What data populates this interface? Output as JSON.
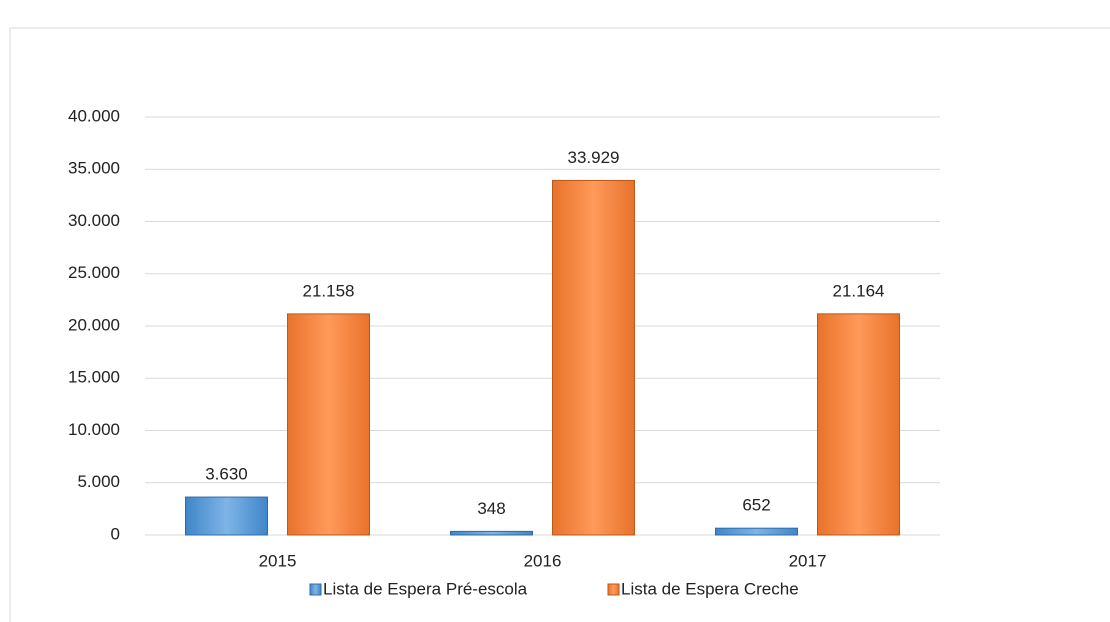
{
  "chart_data": {
    "type": "bar",
    "categories": [
      "2015",
      "2016",
      "2017"
    ],
    "series": [
      {
        "name": "Lista de Espera Pré-escola",
        "color": "#5b9bd5",
        "values": [
          3630,
          348,
          652
        ],
        "value_labels": [
          "3.630",
          "348",
          "652"
        ]
      },
      {
        "name": "Lista de Espera Creche",
        "color": "#ed7d31",
        "values": [
          21158,
          33929,
          21164
        ],
        "value_labels": [
          "21.158",
          "33.929",
          "21.164"
        ]
      }
    ],
    "ylim": [
      0,
      40000
    ],
    "yticks": [
      0,
      {
        "value": 5000,
        "label": "5.000"
      },
      {
        "value": 10000,
        "label": "10.000"
      },
      {
        "value": 15000,
        "label": "15.000"
      },
      {
        "value": 20000,
        "label": "20.000"
      },
      {
        "value": 25000,
        "label": "25.000"
      },
      {
        "value": 30000,
        "label": "30.000"
      },
      {
        "value": 35000,
        "label": "35.000"
      },
      {
        "value": 40000,
        "label": "40.000"
      }
    ],
    "grid": true,
    "legend": "bottom"
  }
}
